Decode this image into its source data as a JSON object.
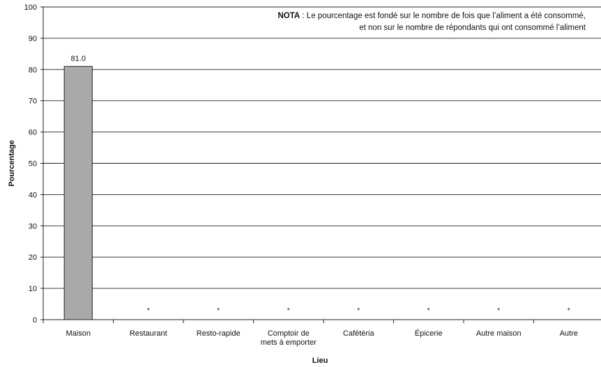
{
  "chart_data": {
    "type": "bar",
    "xlabel": "Lieu",
    "ylabel": "Pourcentage",
    "ylim": [
      0,
      100
    ],
    "yticks": [
      0,
      10,
      20,
      30,
      40,
      50,
      60,
      70,
      80,
      90,
      100
    ],
    "grid": true,
    "categories": [
      [
        "Maison"
      ],
      [
        "Restaurant"
      ],
      [
        "Resto-rapide"
      ],
      [
        "Comptoir de",
        "mets à emporter"
      ],
      [
        "Cafétéria"
      ],
      [
        "Épicerie"
      ],
      [
        "Autre maison"
      ],
      [
        "Autre"
      ]
    ],
    "values": [
      81.0,
      null,
      null,
      null,
      null,
      null,
      null,
      null
    ],
    "data_labels": [
      "81.0",
      "*",
      "*",
      "*",
      "*",
      "*",
      "*",
      "*"
    ],
    "bar_color": "#a9a9a9",
    "note": {
      "bold": "NOTA",
      "line1": " : Le pourcentage est fondé sur le nombre de fois que l’aliment a été consommé,",
      "line2": "et non sur le nombre de répondants qui ont consommé l’aliment"
    }
  }
}
